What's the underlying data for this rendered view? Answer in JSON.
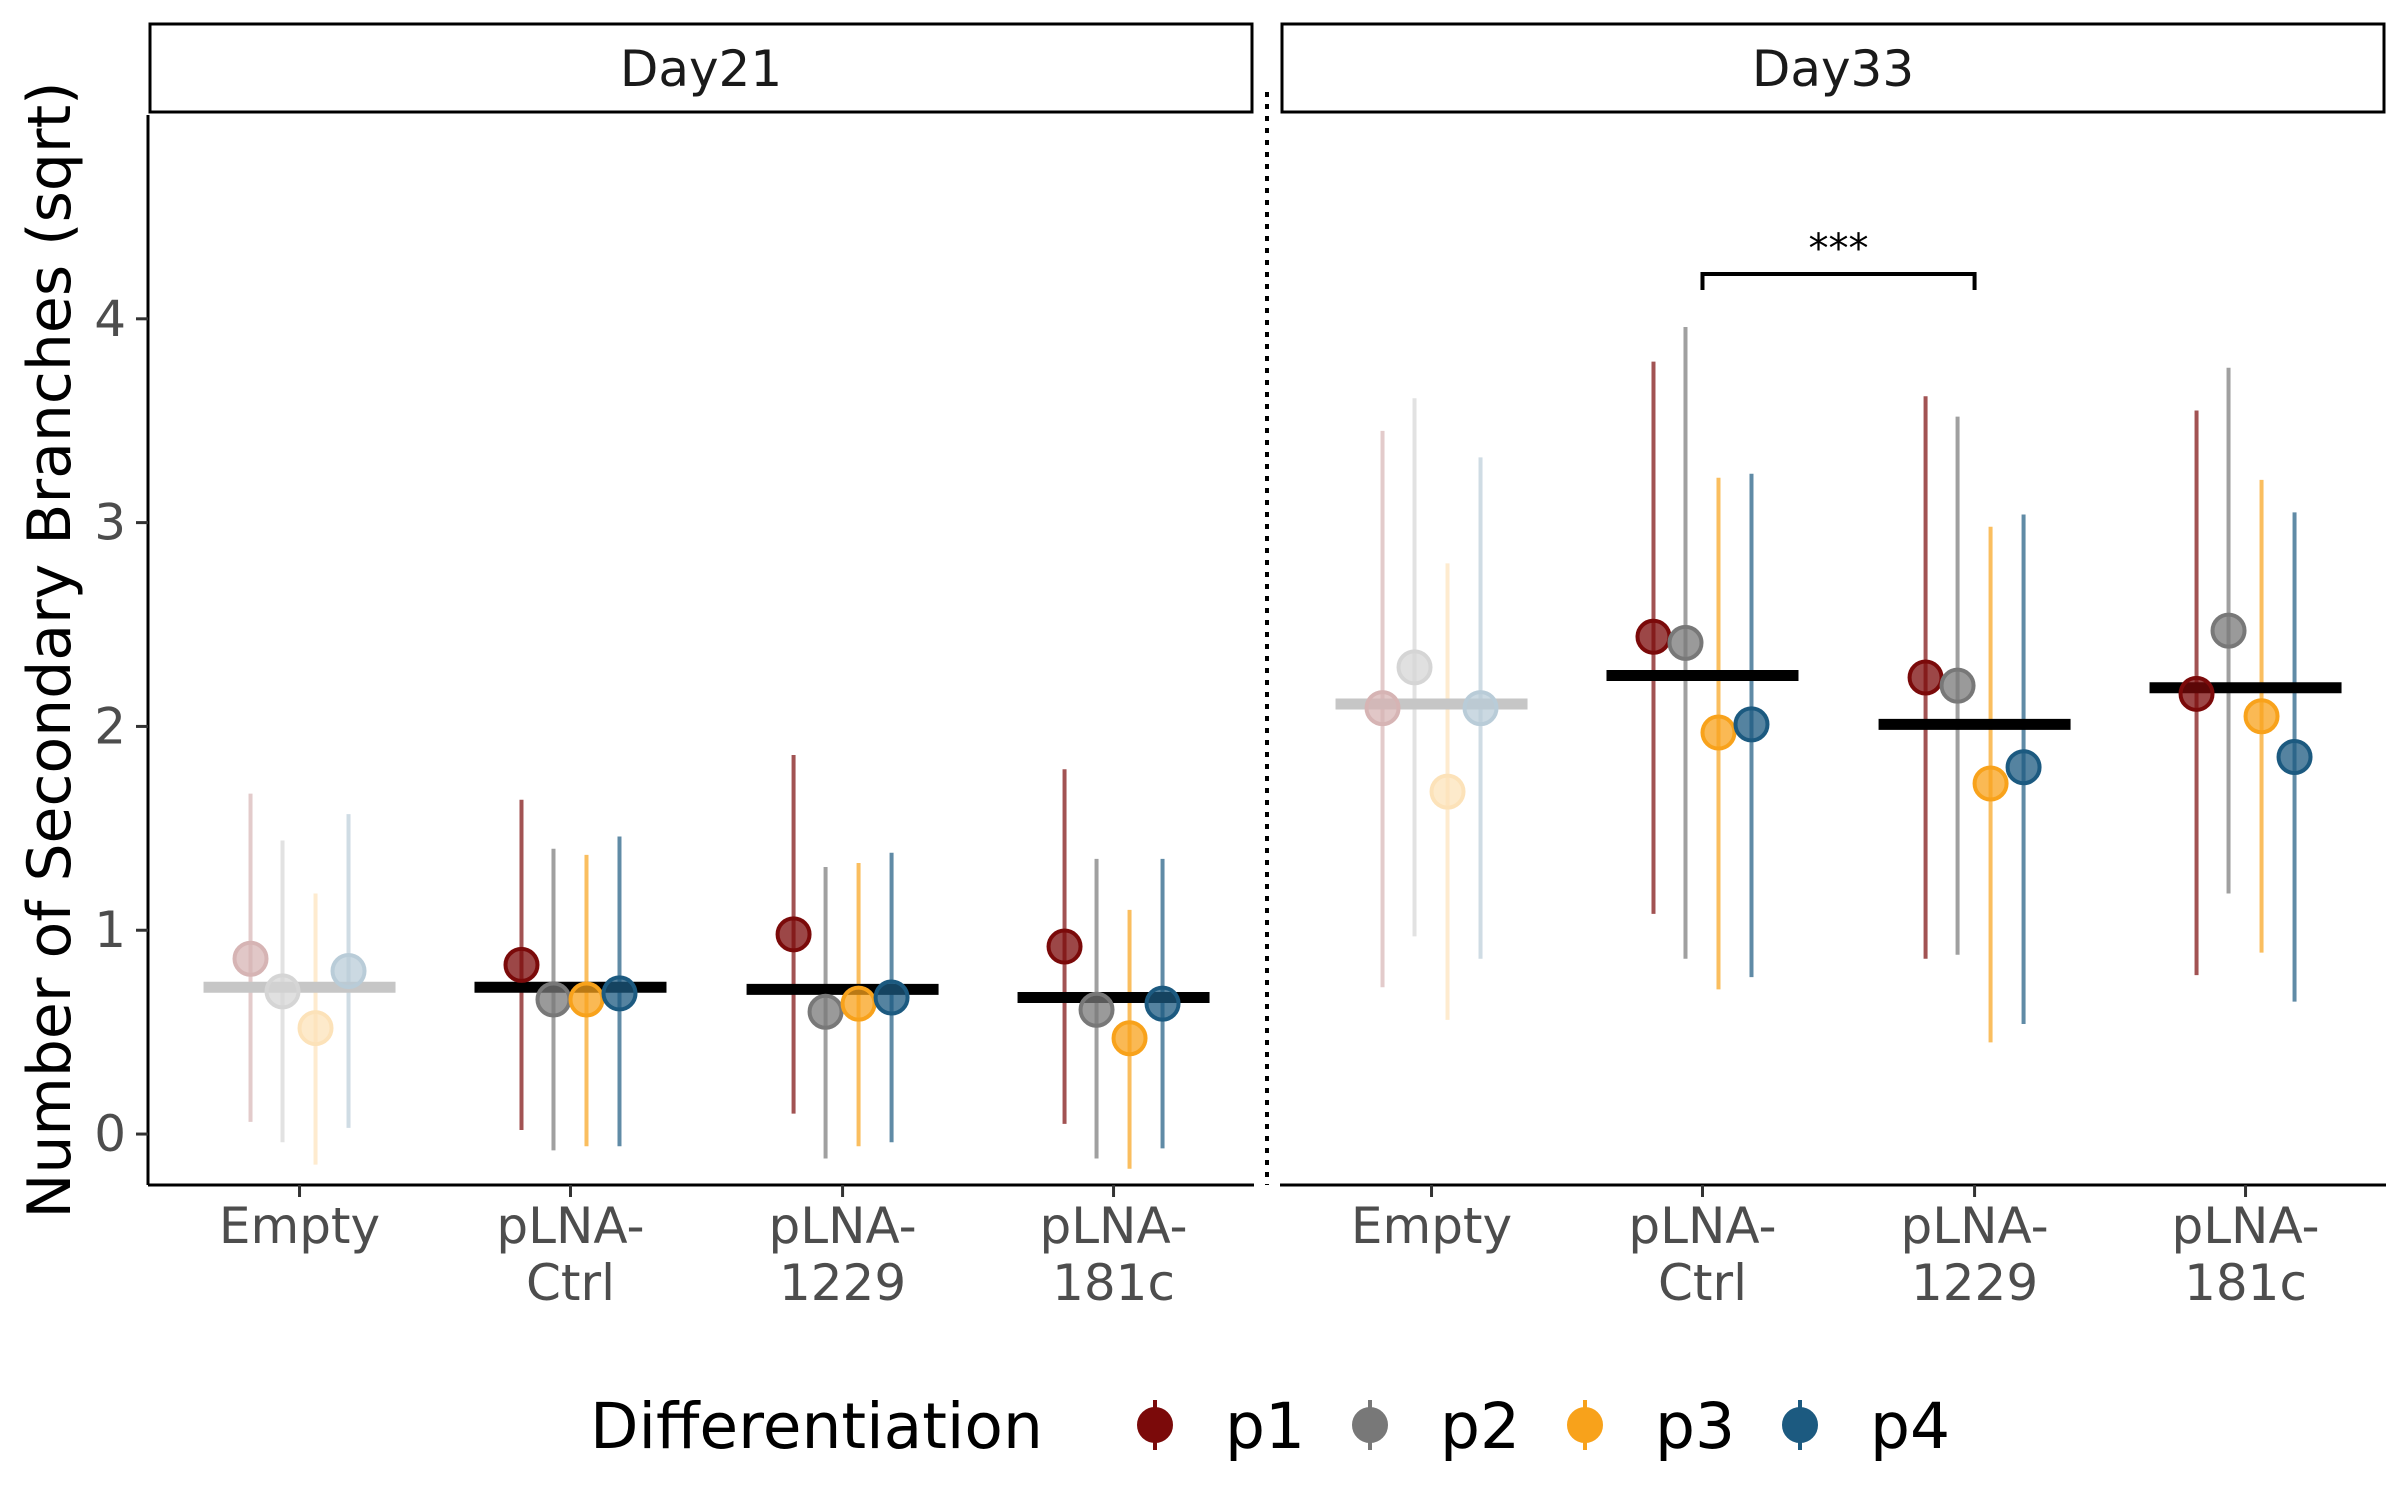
{
  "chart_data": {
    "type": "scatter",
    "subtype": "point-range with group mean bars",
    "ylabel": "Number of Secondary Branches (sqrt)",
    "xlabel": "",
    "ylim": [
      -0.25,
      5.0
    ],
    "yticks": [
      0,
      1,
      2,
      3,
      4
    ],
    "grid": false,
    "categories": [
      [
        "Empty"
      ],
      [
        "pLNA-",
        "Ctrl"
      ],
      [
        "pLNA-",
        "1229"
      ],
      [
        "pLNA-",
        "181c"
      ]
    ],
    "legend": {
      "title": "Differentiation",
      "position": "bottom",
      "entries": [
        {
          "name": "p1",
          "color": "#7b0a0a"
        },
        {
          "name": "p2",
          "color": "#787878"
        },
        {
          "name": "p3",
          "color": "#f8a21b"
        },
        {
          "name": "p4",
          "color": "#1c5a80"
        }
      ]
    },
    "panels": [
      {
        "label": "Day21",
        "groups": [
          {
            "category": "Empty",
            "mean": 0.72,
            "faded": true,
            "points": [
              {
                "series": "p1",
                "y": 0.86,
                "lo": 0.06,
                "hi": 1.67
              },
              {
                "series": "p2",
                "y": 0.7,
                "lo": -0.04,
                "hi": 1.44
              },
              {
                "series": "p3",
                "y": 0.52,
                "lo": -0.15,
                "hi": 1.18
              },
              {
                "series": "p4",
                "y": 0.8,
                "lo": 0.03,
                "hi": 1.57
              }
            ]
          },
          {
            "category": "pLNA-Ctrl",
            "mean": 0.72,
            "faded": false,
            "points": [
              {
                "series": "p1",
                "y": 0.83,
                "lo": 0.02,
                "hi": 1.64
              },
              {
                "series": "p2",
                "y": 0.66,
                "lo": -0.08,
                "hi": 1.4
              },
              {
                "series": "p3",
                "y": 0.66,
                "lo": -0.06,
                "hi": 1.37
              },
              {
                "series": "p4",
                "y": 0.69,
                "lo": -0.06,
                "hi": 1.46
              }
            ]
          },
          {
            "category": "pLNA-1229",
            "mean": 0.71,
            "faded": false,
            "points": [
              {
                "series": "p1",
                "y": 0.98,
                "lo": 0.1,
                "hi": 1.86
              },
              {
                "series": "p2",
                "y": 0.6,
                "lo": -0.12,
                "hi": 1.31
              },
              {
                "series": "p3",
                "y": 0.64,
                "lo": -0.06,
                "hi": 1.33
              },
              {
                "series": "p4",
                "y": 0.67,
                "lo": -0.04,
                "hi": 1.38
              }
            ]
          },
          {
            "category": "pLNA-181c",
            "mean": 0.67,
            "faded": false,
            "points": [
              {
                "series": "p1",
                "y": 0.92,
                "lo": 0.05,
                "hi": 1.79
              },
              {
                "series": "p2",
                "y": 0.61,
                "lo": -0.12,
                "hi": 1.35
              },
              {
                "series": "p3",
                "y": 0.47,
                "lo": -0.17,
                "hi": 1.1
              },
              {
                "series": "p4",
                "y": 0.64,
                "lo": -0.07,
                "hi": 1.35
              }
            ]
          }
        ]
      },
      {
        "label": "Day33",
        "significance": {
          "from": "pLNA-Ctrl",
          "to": "pLNA-1229",
          "y": 4.22,
          "label": "***"
        },
        "groups": [
          {
            "category": "Empty",
            "mean": 2.11,
            "faded": true,
            "points": [
              {
                "series": "p1",
                "y": 2.09,
                "lo": 0.72,
                "hi": 3.45
              },
              {
                "series": "p2",
                "y": 2.29,
                "lo": 0.97,
                "hi": 3.61
              },
              {
                "series": "p3",
                "y": 1.68,
                "lo": 0.56,
                "hi": 2.8
              },
              {
                "series": "p4",
                "y": 2.09,
                "lo": 0.86,
                "hi": 3.32
              }
            ]
          },
          {
            "category": "pLNA-Ctrl",
            "mean": 2.25,
            "faded": false,
            "points": [
              {
                "series": "p1",
                "y": 2.44,
                "lo": 1.08,
                "hi": 3.79
              },
              {
                "series": "p2",
                "y": 2.41,
                "lo": 0.86,
                "hi": 3.96
              },
              {
                "series": "p3",
                "y": 1.97,
                "lo": 0.71,
                "hi": 3.22
              },
              {
                "series": "p4",
                "y": 2.01,
                "lo": 0.77,
                "hi": 3.24
              }
            ]
          },
          {
            "category": "pLNA-1229",
            "mean": 2.01,
            "faded": false,
            "points": [
              {
                "series": "p1",
                "y": 2.24,
                "lo": 0.86,
                "hi": 3.62
              },
              {
                "series": "p2",
                "y": 2.2,
                "lo": 0.88,
                "hi": 3.52
              },
              {
                "series": "p3",
                "y": 1.72,
                "lo": 0.45,
                "hi": 2.98
              },
              {
                "series": "p4",
                "y": 1.8,
                "lo": 0.54,
                "hi": 3.04
              }
            ]
          },
          {
            "category": "pLNA-181c",
            "mean": 2.19,
            "faded": false,
            "points": [
              {
                "series": "p1",
                "y": 2.16,
                "lo": 0.78,
                "hi": 3.55
              },
              {
                "series": "p2",
                "y": 2.47,
                "lo": 1.18,
                "hi": 3.76
              },
              {
                "series": "p3",
                "y": 2.05,
                "lo": 0.89,
                "hi": 3.21
              },
              {
                "series": "p4",
                "y": 1.85,
                "lo": 0.65,
                "hi": 3.05
              }
            ]
          }
        ]
      }
    ]
  }
}
